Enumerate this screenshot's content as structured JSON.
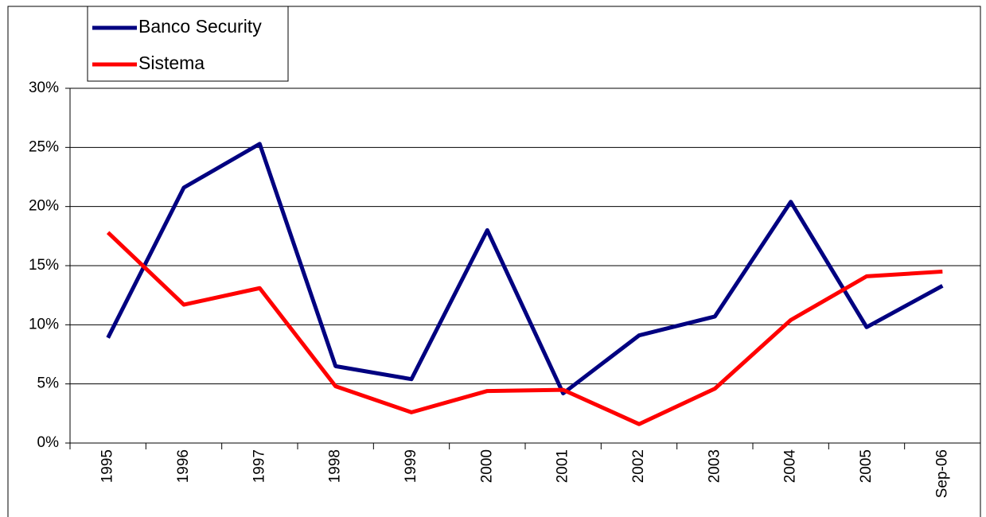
{
  "chart_data": {
    "type": "line",
    "categories": [
      "1995",
      "1996",
      "1997",
      "1998",
      "1999",
      "2000",
      "2001",
      "2002",
      "2003",
      "2004",
      "2005",
      "Sep-06"
    ],
    "series": [
      {
        "name": "Banco Security",
        "color": "#000080",
        "values": [
          8.9,
          21.6,
          25.3,
          6.5,
          5.4,
          18.0,
          4.2,
          9.1,
          10.7,
          20.4,
          9.8,
          13.3
        ]
      },
      {
        "name": "Sistema",
        "color": "#ff0000",
        "values": [
          17.8,
          11.7,
          13.1,
          4.8,
          2.6,
          4.4,
          4.5,
          1.6,
          4.6,
          10.4,
          14.1,
          14.5
        ]
      }
    ],
    "ylim": [
      0,
      30
    ],
    "yticks": [
      {
        "value": 0,
        "label": "0%"
      },
      {
        "value": 5,
        "label": "5%"
      },
      {
        "value": 10,
        "label": "10%"
      },
      {
        "value": 15,
        "label": "15%"
      },
      {
        "value": 20,
        "label": "20%"
      },
      {
        "value": 25,
        "label": "25%"
      },
      {
        "value": 30,
        "label": "30%"
      }
    ],
    "grid": true,
    "legend": "top-left"
  }
}
